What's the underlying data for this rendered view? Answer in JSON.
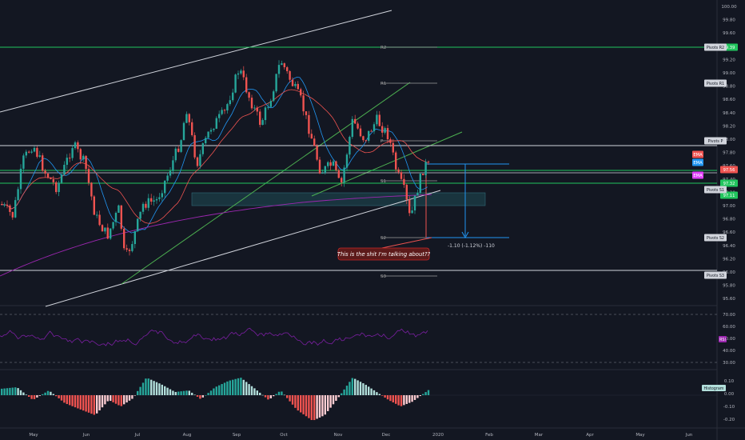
{
  "price_axis": {
    "ticks": [
      "100.00",
      "99.80",
      "99.60",
      "99.40",
      "99.20",
      "99.00",
      "98.80",
      "98.60",
      "98.40",
      "98.20",
      "98.00",
      "97.80",
      "97.60",
      "97.40",
      "97.20",
      "97.00",
      "96.80",
      "96.60",
      "96.40",
      "96.20",
      "96.00",
      "95.80",
      "95.60"
    ],
    "tags": [
      {
        "id": "r2",
        "text": "99.39",
        "color": "#22c55e",
        "textColor": "#ffffff"
      },
      {
        "id": "ema1",
        "text": "EMA",
        "color": "#ef5350",
        "textColor": "#ffffff"
      },
      {
        "id": "ema2",
        "text": "EMA",
        "color": "#2196f3",
        "textColor": "#ffffff"
      },
      {
        "id": "last",
        "text": "97.56",
        "color": "#ef5350",
        "textColor": "#ffffff"
      },
      {
        "id": "ema3",
        "text": "EMA",
        "color": "#e040fb",
        "textColor": "#ffffff"
      },
      {
        "id": "s1v",
        "text": "97.32",
        "color": "#22c55e",
        "textColor": "#ffffff"
      },
      {
        "id": "s1b",
        "text": "97.11",
        "color": "#22c55e",
        "textColor": "#ffffff"
      }
    ],
    "pivot_tags": [
      {
        "id": "pr2",
        "text": "Pivots R2"
      },
      {
        "id": "pr1",
        "text": "Pivots R1"
      },
      {
        "id": "pp",
        "text": "Pivots P"
      },
      {
        "id": "ps1",
        "text": "Pivots S1"
      },
      {
        "id": "ps2",
        "text": "Pivots S2"
      },
      {
        "id": "ps3",
        "text": "Pivots S3"
      }
    ]
  },
  "pivot_labels": [
    "R2",
    "R1",
    "P",
    "S1",
    "S2",
    "S3"
  ],
  "measure_label": "-1.10 (-1.12%) -110",
  "callout": "This is the shit I'm talking about??",
  "rsi": {
    "ticks": [
      "70.00",
      "60.00",
      "50.00",
      "40.00",
      "30.00"
    ],
    "tag": "RSI",
    "tag_color": "#9c27b0"
  },
  "macd": {
    "ticks": [
      "0.10",
      "0.00",
      "-0.10",
      "-0.20"
    ],
    "tag": "Histogram",
    "tag_color": "#b2dfdb"
  },
  "time_axis": [
    "May",
    "Jun",
    "Jul",
    "Aug",
    "Sep",
    "Oct",
    "Nov",
    "Dec",
    "2020",
    "Feb",
    "Mar",
    "Apr",
    "May",
    "Jun"
  ],
  "colors": {
    "up": "#26a69a",
    "down": "#ef5350",
    "bg": "#131722",
    "grid": "#2a2e39",
    "text": "#b2b5be"
  }
}
